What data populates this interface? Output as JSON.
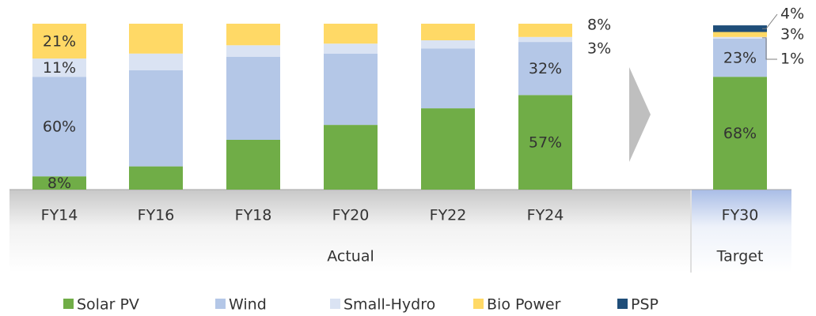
{
  "chart_data": {
    "type": "stacked_bar",
    "categories": [
      "FY14",
      "FY16",
      "FY18",
      "FY20",
      "FY22",
      "FY24",
      "FY30"
    ],
    "groups": [
      "Actual",
      "Target"
    ],
    "series": [
      {
        "name": "Solar PV",
        "color": "#70ad47",
        "values": [
          8,
          14,
          30,
          39,
          49,
          57,
          68
        ],
        "value_labels": [
          "8%",
          null,
          null,
          null,
          null,
          "57%",
          "68%"
        ]
      },
      {
        "name": "Wind",
        "color": "#b4c7e7",
        "values": [
          60,
          58,
          50,
          43,
          36,
          32,
          23
        ],
        "value_labels": [
          "60%",
          null,
          null,
          null,
          null,
          "32%",
          "23%"
        ]
      },
      {
        "name": "Small-Hydro",
        "color": "#dae3f3",
        "values": [
          11,
          10,
          7,
          6,
          5,
          3,
          1
        ],
        "value_labels": [
          "11%",
          null,
          null,
          null,
          null,
          "3%",
          "1%"
        ]
      },
      {
        "name": "Bio Power",
        "color": "#ffd966",
        "values": [
          21,
          18,
          13,
          12,
          10,
          8,
          3
        ],
        "value_labels": [
          "21%",
          null,
          null,
          null,
          null,
          "8%",
          "3%"
        ]
      },
      {
        "name": "PSP",
        "color": "#1f4e79",
        "values": [
          null,
          null,
          null,
          null,
          null,
          null,
          4
        ],
        "value_labels": [
          null,
          null,
          null,
          null,
          null,
          null,
          "4%"
        ]
      }
    ],
    "ylim": [
      0,
      100
    ]
  }
}
